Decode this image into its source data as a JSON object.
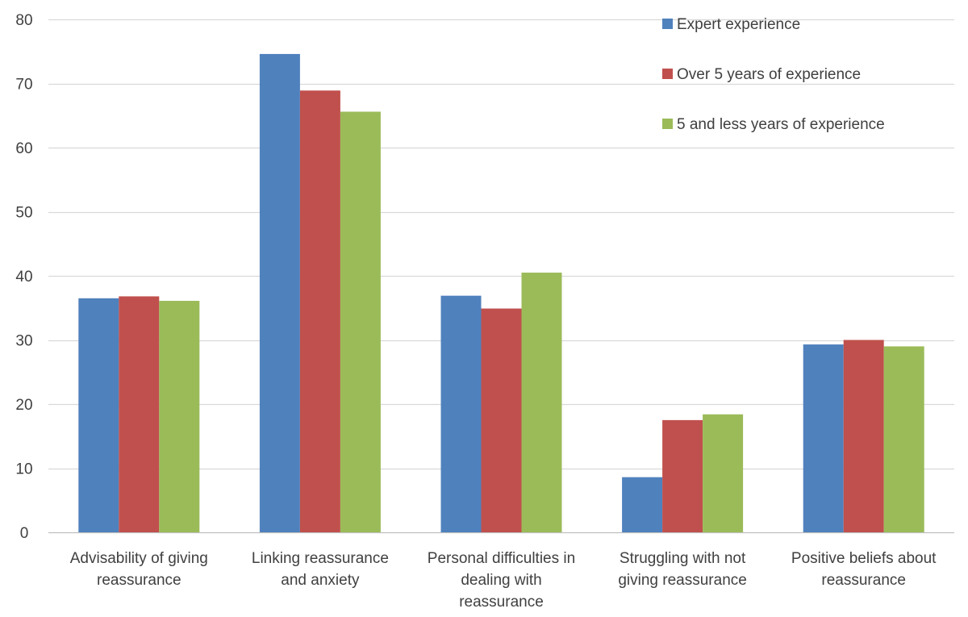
{
  "chart_data": {
    "type": "bar",
    "title": "",
    "xlabel": "",
    "ylabel": "",
    "ylim": [
      0,
      80
    ],
    "yticks": [
      0,
      10,
      20,
      30,
      40,
      50,
      60,
      70,
      80
    ],
    "grid": true,
    "legend_position": "top-right",
    "categories": [
      [
        "Advisability of giving",
        "reassurance"
      ],
      [
        "Linking reassurance",
        "and anxiety"
      ],
      [
        "Personal difficulties in",
        "dealing with",
        "reassurance"
      ],
      [
        "Struggling with not",
        "giving reassurance"
      ],
      [
        "Positive beliefs about",
        "reassurance"
      ]
    ],
    "series": [
      {
        "name": "Expert experience",
        "color": "#4f81bd",
        "values": [
          36.5,
          74.6,
          36.9,
          8.6,
          29.3
        ]
      },
      {
        "name": "Over 5 years of experience",
        "color": "#c0504d",
        "values": [
          36.8,
          68.9,
          34.9,
          17.5,
          30.0
        ]
      },
      {
        "name": "5 and less years of experience",
        "color": "#9bbb59",
        "values": [
          36.1,
          65.6,
          40.5,
          18.4,
          29.0
        ]
      }
    ]
  }
}
